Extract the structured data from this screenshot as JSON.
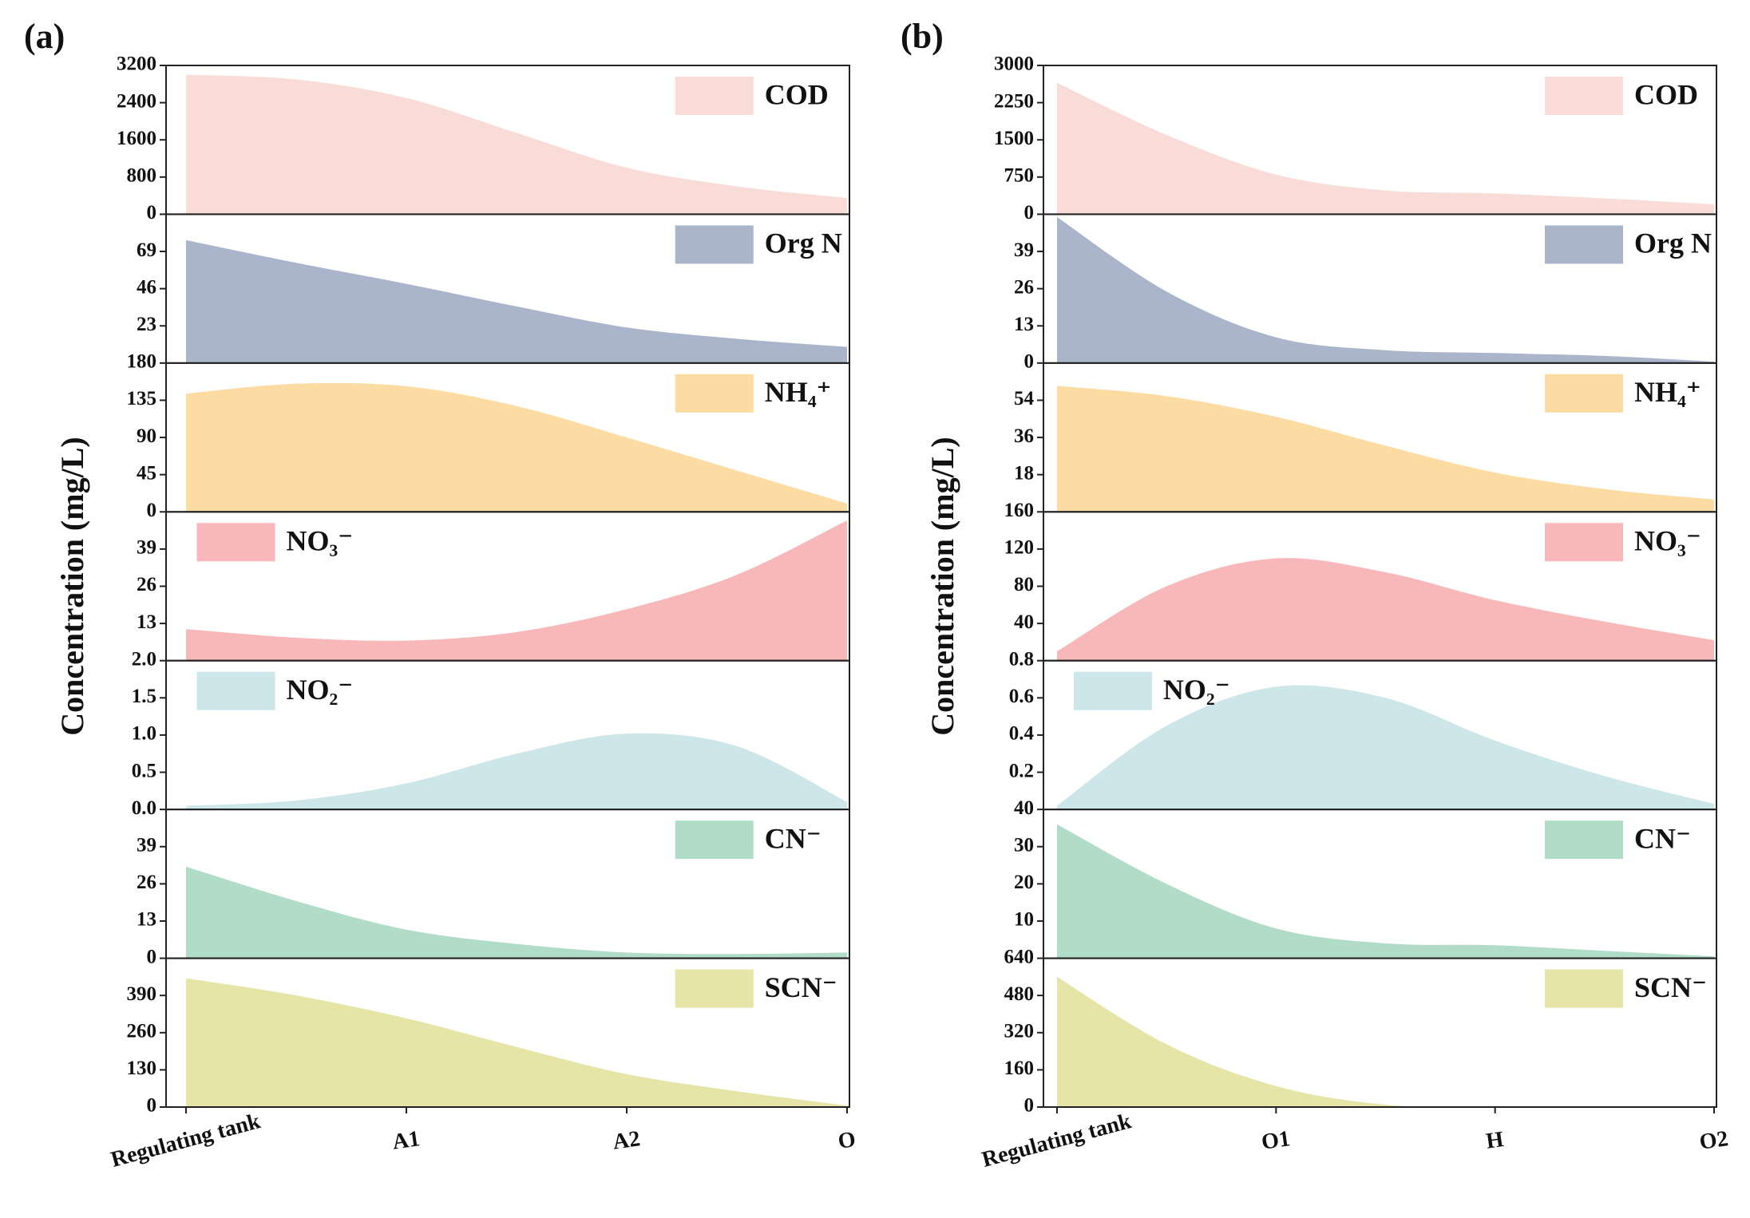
{
  "chart_data": [
    {
      "type": "area",
      "panel_label": "(a)",
      "ylabel": "Concentration (mg/L)",
      "categories": [
        "Regulating tank",
        null,
        "A1",
        null,
        "A2",
        null,
        "O"
      ],
      "series": [
        {
          "name": "COD",
          "color": "#f9dcd8",
          "legend": "upper right",
          "values": [
            3000,
            2900,
            2500,
            1750,
            1000,
            600,
            350
          ],
          "ylim": [
            0,
            3200
          ],
          "yticks": [
            0,
            800,
            1600,
            2400,
            3200
          ]
        },
        {
          "name": "Org N",
          "color": "#aab5cc",
          "legend": "upper right",
          "values": [
            76,
            62,
            49,
            35,
            22,
            15,
            10
          ],
          "ylim": [
            0,
            92
          ],
          "yticks": [
            23,
            46,
            69
          ]
        },
        {
          "name": "NH₄⁺",
          "color": "#fcdca3",
          "legend": "upper right",
          "values": [
            143,
            155,
            152,
            128,
            90,
            50,
            10
          ],
          "ylim": [
            0,
            180
          ],
          "yticks": [
            0,
            45,
            90,
            135,
            180
          ]
        },
        {
          "name": "NO₃⁻",
          "color": "#f8b7b9",
          "legend": "upper left",
          "values": [
            11,
            8,
            7,
            10,
            18,
            30,
            49
          ],
          "ylim": [
            0,
            52
          ],
          "yticks": [
            13,
            26,
            39
          ]
        },
        {
          "name": "NO₂⁻",
          "color": "#cde6ea",
          "legend": "upper left",
          "values": [
            0.05,
            0.12,
            0.35,
            0.75,
            1.02,
            0.85,
            0.1
          ],
          "ylim": [
            0,
            2
          ],
          "yticks": [
            {
              "value": 0,
              "label": "0.0"
            },
            0.5,
            {
              "value": 1,
              "label": "1.0"
            },
            1.5,
            {
              "value": 2,
              "label": "2.0"
            }
          ]
        },
        {
          "name": "CN⁻",
          "color": "#b0dcc8",
          "legend": "upper right",
          "values": [
            32,
            20,
            10,
            5,
            2,
            1.5,
            2
          ],
          "ylim": [
            0,
            52
          ],
          "yticks": [
            0,
            13,
            26,
            39
          ]
        },
        {
          "name": "SCN⁻",
          "color": "#e6e4a6",
          "legend": "upper right",
          "values": [
            450,
            390,
            310,
            210,
            115,
            55,
            5
          ],
          "ylim": [
            0,
            520
          ],
          "yticks": [
            0,
            130,
            260,
            390
          ]
        }
      ]
    },
    {
      "type": "area",
      "panel_label": "(b)",
      "ylabel": "Concentration (mg/L)",
      "categories": [
        "Regulating tank",
        null,
        "O1",
        null,
        "H",
        null,
        "O2"
      ],
      "series": [
        {
          "name": "COD",
          "color": "#f9dcd8",
          "legend": "upper right",
          "values": [
            2650,
            1600,
            800,
            480,
            420,
            320,
            200
          ],
          "ylim": [
            0,
            3000
          ],
          "yticks": [
            0,
            750,
            1500,
            2250,
            3000
          ]
        },
        {
          "name": "Org N",
          "color": "#aab5cc",
          "legend": "upper right",
          "values": [
            51,
            25,
            9,
            4.5,
            3.5,
            2.5,
            0.5
          ],
          "ylim": [
            0,
            52
          ],
          "yticks": [
            0,
            13,
            26,
            39
          ]
        },
        {
          "name": "NH₄⁺",
          "color": "#fcdca3",
          "legend": "upper right",
          "values": [
            61,
            56,
            46,
            32,
            19,
            11,
            6
          ],
          "ylim": [
            0,
            72
          ],
          "yticks": [
            18,
            36,
            54
          ]
        },
        {
          "name": "NO₃⁻",
          "color": "#f8b7b9",
          "legend": "upper right",
          "values": [
            10,
            80,
            110,
            95,
            65,
            42,
            22
          ],
          "ylim": [
            0,
            160
          ],
          "yticks": [
            40,
            80,
            120,
            160
          ]
        },
        {
          "name": "NO₂⁻",
          "color": "#cde6ea",
          "legend": "upper left",
          "values": [
            0.02,
            0.45,
            0.66,
            0.6,
            0.37,
            0.18,
            0.03
          ],
          "ylim": [
            0,
            0.8
          ],
          "yticks": [
            0.2,
            0.4,
            0.6,
            0.8
          ]
        },
        {
          "name": "CN⁻",
          "color": "#b0dcc8",
          "legend": "upper right",
          "values": [
            36,
            20,
            8,
            4,
            3.5,
            2,
            0.5
          ],
          "ylim": [
            0,
            40
          ],
          "yticks": [
            10,
            20,
            30,
            40
          ]
        },
        {
          "name": "SCN⁻",
          "color": "#e6e4a6",
          "legend": "upper right",
          "values": [
            560,
            270,
            90,
            10,
            0,
            0,
            0
          ],
          "ylim": [
            0,
            640
          ],
          "yticks": [
            0,
            160,
            320,
            480,
            640
          ]
        }
      ]
    }
  ]
}
